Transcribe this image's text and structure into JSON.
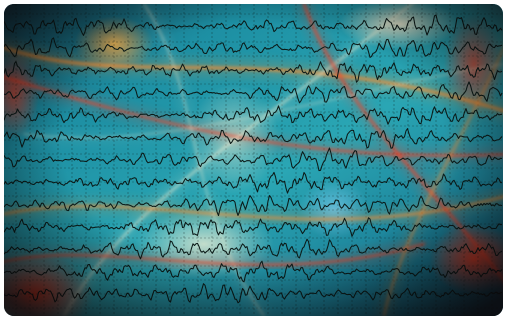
{
  "image": {
    "subject-icon": "eeg-waveform-artwork",
    "trace_count": 13,
    "palette": {
      "background_teal": "#1d8fa3",
      "background_deep": "#0f3a4f",
      "trace_color": "#0b1a18",
      "grid_color": "#0b1a18",
      "light_orange": "#ff8a2a",
      "light_red": "#ff3b1f",
      "glow_white": "#fff4d6",
      "glow_blue": "#8fd8ff",
      "vignette": "#0a0608"
    }
  }
}
